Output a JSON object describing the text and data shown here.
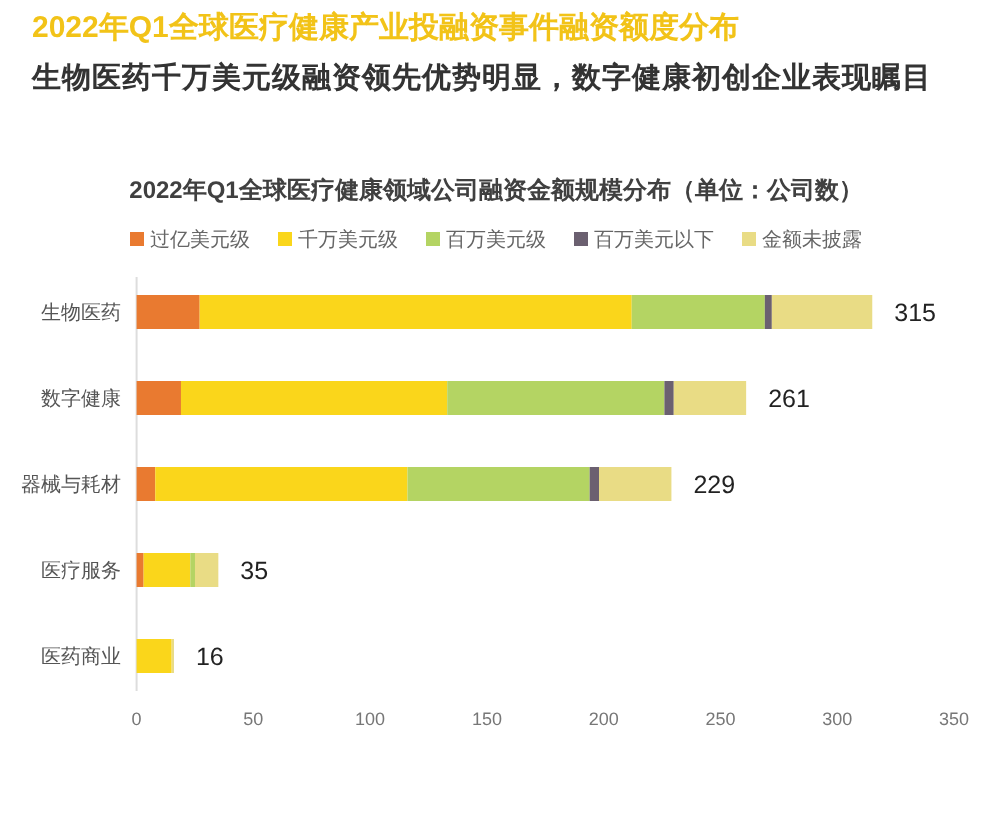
{
  "chart_data": {
    "type": "bar",
    "orientation": "horizontal",
    "stacked": true,
    "title": "2022年Q1全球医疗健康产业投融资事件融资额度分布",
    "subtitle": "生物医药千万美元级融资领先优势明显，数字健康初创企业表现瞩目",
    "annotations": [
      "2022年Q1全球医疗健康领域公司融资金额规模分布（单位：公司数）"
    ],
    "categories": [
      "生物医药",
      "数字健康",
      "器械与耗材",
      "医疗服务",
      "医药商业"
    ],
    "series": [
      {
        "name": "过亿美元级",
        "color": "#e97a30",
        "values": [
          27,
          19,
          8,
          3,
          0
        ]
      },
      {
        "name": "千万美元级",
        "color": "#fad61b",
        "values": [
          185,
          114,
          108,
          20,
          15
        ]
      },
      {
        "name": "百万美元级",
        "color": "#b4d463",
        "values": [
          57,
          93,
          78,
          2,
          0
        ]
      },
      {
        "name": "百万美元以下",
        "color": "#6b6070",
        "values": [
          3,
          4,
          4,
          0,
          0
        ]
      },
      {
        "name": "金额未披露",
        "color": "#e9dc85",
        "values": [
          43,
          31,
          31,
          10,
          1
        ]
      }
    ],
    "totals": [
      "315",
      "261",
      "229",
      "35",
      "16"
    ],
    "xlim": [
      0,
      350
    ],
    "xticks": [
      0,
      50,
      100,
      150,
      200,
      250,
      300,
      350
    ],
    "legend": "top"
  }
}
